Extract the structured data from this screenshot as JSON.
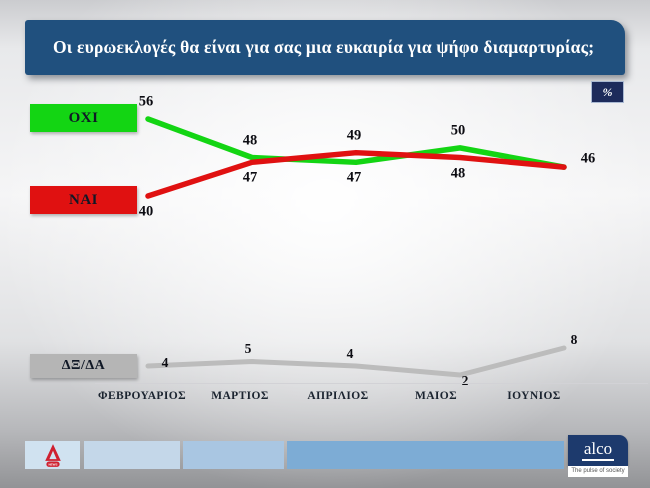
{
  "title": "Οι ευρωεκλογές θα είναι για σας μια ευκαιρία για ψήφο διαμαρτυρίας;",
  "unit_badge": "%",
  "chart_data": {
    "type": "line",
    "categories": [
      "ΦΕΒΡΟΥΑΡΙΟΣ",
      "ΜΑΡΤΙΟΣ",
      "ΑΠΡΙΛΙΟΣ",
      "ΜΑΙΟΣ",
      "ΙΟΥΝΙΟΣ"
    ],
    "series": [
      {
        "name": "ΟΧΙ",
        "color": "#13d513",
        "values": [
          56,
          48,
          47,
          50,
          46
        ]
      },
      {
        "name": "ΝΑΙ",
        "color": "#e01111",
        "values": [
          40,
          47,
          49,
          48,
          46
        ]
      },
      {
        "name": "ΔΞ/ΔΑ",
        "color": "#bcbcbc",
        "values": [
          4,
          5,
          4,
          2,
          8
        ]
      }
    ],
    "unit": "%",
    "legend_position": "left",
    "grid": false,
    "data_labels": true,
    "main_value_range": [
      40,
      56
    ],
    "dk_value_range": [
      2,
      8
    ]
  },
  "footer": {
    "alpha_news_label": "NEWS",
    "alco_logo_text": "alco",
    "alco_tagline": "The pulse of society"
  },
  "colors": {
    "title_bar": "#20507e",
    "badge": "#1d2b5b",
    "no_line": "#13d513",
    "yes_line": "#e01111",
    "dk_line": "#bcbcbc"
  }
}
